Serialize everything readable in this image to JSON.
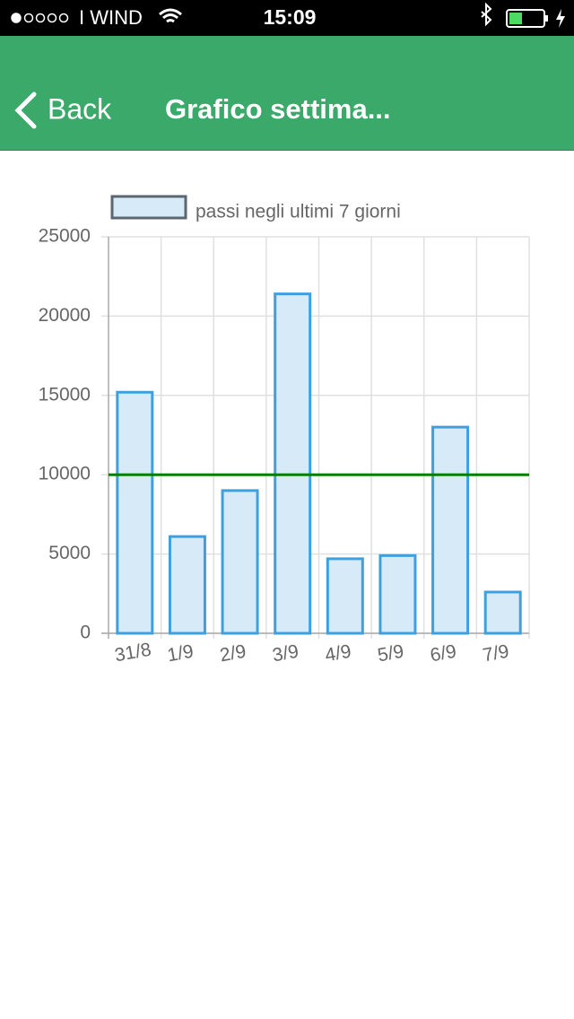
{
  "status_bar": {
    "carrier": "I WIND",
    "time": "15:09"
  },
  "nav_bar": {
    "back": "Back",
    "title": "Grafico settima..."
  },
  "chart_data": {
    "type": "bar",
    "categories": [
      "31/8",
      "1/9",
      "2/9",
      "3/9",
      "4/9",
      "5/9",
      "6/9",
      "7/9"
    ],
    "series": [
      {
        "name": "passi negli ultimi 7 giorni",
        "color": "#d6eaf8",
        "border_color": "#3fa0e0",
        "values": [
          15200,
          6100,
          9000,
          21400,
          4700,
          4900,
          13000,
          2600
        ]
      }
    ],
    "threshold": {
      "value": 10000,
      "color": "#008000"
    },
    "ylim": [
      0,
      25000
    ],
    "yticks": [
      0,
      5000,
      10000,
      15000,
      20000,
      25000
    ],
    "grid": true,
    "legend": "top-left"
  }
}
